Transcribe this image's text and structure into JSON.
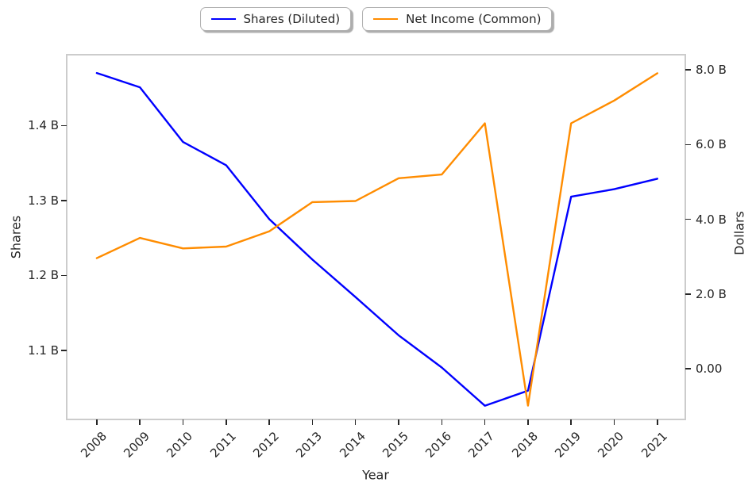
{
  "chart_data": {
    "type": "line",
    "title": "",
    "x_label": "Year",
    "x": [
      2008,
      2009,
      2010,
      2011,
      2012,
      2013,
      2014,
      2015,
      2016,
      2017,
      2018,
      2019,
      2020,
      2021
    ],
    "x_tick_labels": [
      "2008",
      "2009",
      "2010",
      "2011",
      "2012",
      "2013",
      "2014",
      "2015",
      "2016",
      "2017",
      "2018",
      "2019",
      "2020",
      "2021"
    ],
    "xlim": [
      2007.32,
      2021.63
    ],
    "grid": false,
    "left_axis": {
      "label": "Shares",
      "tick_values": [
        1.4,
        1.3,
        1.2,
        1.1
      ],
      "tick_labels": [
        "1.4 B",
        "1.3 B",
        "1.2 B",
        "1.1 B"
      ],
      "ylim": [
        1.0088,
        1.4934
      ]
    },
    "right_axis": {
      "label": "Dollars",
      "tick_values": [
        8.0,
        6.0,
        4.0,
        2.0,
        0.0
      ],
      "tick_labels": [
        "8.0 B",
        "6.0 B",
        "4.0 B",
        "2.0 B",
        "0.00"
      ],
      "ylim": [
        -1.338,
        8.386
      ]
    },
    "legend": {
      "position": "top-center",
      "labels": [
        "Shares (Diluted)",
        "Net Income (Common)"
      ]
    },
    "series": [
      {
        "name": "Shares (Diluted)",
        "axis": "left",
        "color": "#0000ff",
        "unit": "B",
        "values": [
          1.47,
          1.451,
          1.378,
          1.347,
          1.275,
          1.221,
          1.171,
          1.12,
          1.077,
          1.026,
          1.046,
          1.305,
          1.315,
          1.329
        ]
      },
      {
        "name": "Net Income (Common)",
        "axis": "right",
        "color": "#ff8c00",
        "unit": "B",
        "values": [
          2.96,
          3.5,
          3.22,
          3.27,
          3.68,
          4.46,
          4.49,
          5.1,
          5.2,
          6.57,
          -0.99,
          6.57,
          7.18,
          7.91
        ]
      }
    ],
    "style": {
      "spine_color": "#cccccc",
      "text_color": "#262626",
      "background": "#ffffff"
    }
  }
}
